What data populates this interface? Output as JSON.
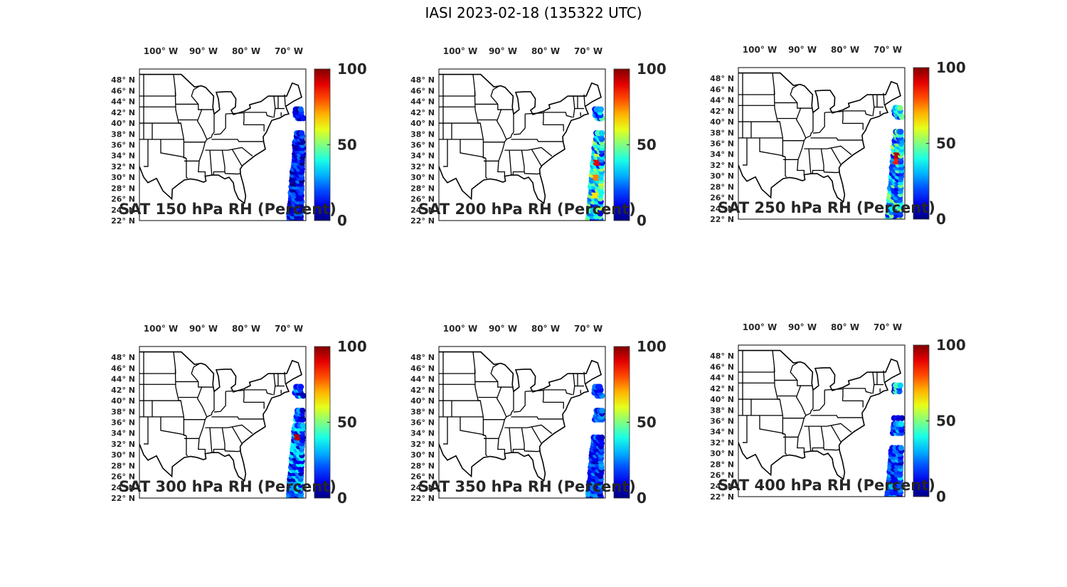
{
  "title": "IASI 2023-02-18 (135322 UTC)",
  "colormap": "jet",
  "colors": {
    "land_outline": "#000000",
    "text": "#262626"
  },
  "colorbar": {
    "min": 0,
    "max": 100,
    "ticks": [
      "0",
      "50",
      "100"
    ]
  },
  "lon_ticks": [
    "100° W",
    "90° W",
    "80° W",
    "70° W"
  ],
  "lat_ticks": [
    "48° N",
    "46° N",
    "44° N",
    "42° N",
    "40° N",
    "38° N",
    "36° N",
    "34° N",
    "32° N",
    "30° N",
    "28° N",
    "26° N",
    "24° N",
    "22° N"
  ],
  "panels": [
    {
      "title": "SAT 150 hPa RH (Percent)",
      "level_hpa": 150,
      "rh_range": [
        0,
        25
      ],
      "high_values": []
    },
    {
      "title": "SAT 200 hPa RH (Percent)",
      "level_hpa": 200,
      "rh_range": [
        10,
        60
      ],
      "high_values": [
        {
          "lat": 33,
          "rh": 90
        },
        {
          "lat": 30,
          "rh": 75
        },
        {
          "lat": 27,
          "rh": 65
        }
      ]
    },
    {
      "title": "SAT 250 hPa RH (Percent)",
      "level_hpa": 250,
      "rh_range": [
        10,
        55
      ],
      "high_values": [
        {
          "lat": 34,
          "rh": 95
        },
        {
          "lat": 33,
          "rh": 85
        }
      ]
    },
    {
      "title": "SAT 300 hPa RH (Percent)",
      "level_hpa": 300,
      "rh_range": [
        5,
        40
      ],
      "high_values": [
        {
          "lat": 33.5,
          "rh": 95
        }
      ]
    },
    {
      "title": "SAT 350 hPa RH (Percent)",
      "level_hpa": 350,
      "rh_range": [
        5,
        30
      ],
      "high_values": []
    },
    {
      "title": "SAT 400 hPa RH (Percent)",
      "level_hpa": 400,
      "rh_range": [
        5,
        35
      ],
      "high_values": [
        {
          "lat": 42,
          "rh": 45
        }
      ]
    }
  ]
}
